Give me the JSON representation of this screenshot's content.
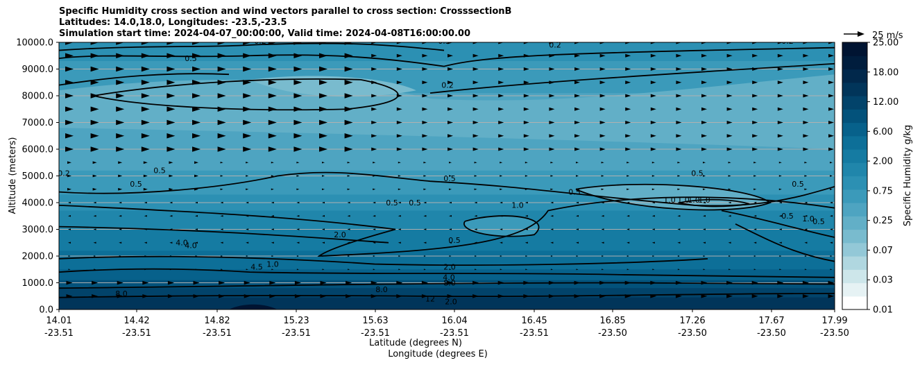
{
  "title_lines": [
    "Specific Humidity cross section and wind vectors parallel to cross section: CrosssectionB",
    "Latitudes: 14.0,18.0, Longitudes: -23.5,-23.5",
    "Simulation start time: 2024-04-07_00:00:00, Valid time: 2024-04-08T16:00:00.00"
  ],
  "chart_data": {
    "type": "heatmap",
    "subtype": "filled contour cross section with contour lines and wind vectors",
    "ylabel": "Altitude (meters)",
    "xlabel_lines": [
      "Latitude (degrees N)",
      "Longitude (degrees E)"
    ],
    "ylim": [
      0,
      10000
    ],
    "y_ticks": [
      "0.0",
      "1000.0",
      "2000.0",
      "3000.0",
      "4000.0",
      "5000.0",
      "6000.0",
      "7000.0",
      "8000.0",
      "9000.0",
      "10000.0"
    ],
    "x_ticks": [
      {
        "lat": "14.01",
        "lon": "-23.51"
      },
      {
        "lat": "14.42",
        "lon": "-23.51"
      },
      {
        "lat": "14.82",
        "lon": "-23.51"
      },
      {
        "lat": "15.23",
        "lon": "-23.51"
      },
      {
        "lat": "15.63",
        "lon": "-23.51"
      },
      {
        "lat": "16.04",
        "lon": "-23.51"
      },
      {
        "lat": "16.45",
        "lon": "-23.51"
      },
      {
        "lat": "16.85",
        "lon": "-23.50"
      },
      {
        "lat": "17.26",
        "lon": "-23.50"
      },
      {
        "lat": "17.67",
        "lon": "-23.50"
      },
      {
        "lat": "17.99",
        "lon": "-23.50"
      }
    ],
    "grid": "horizontal",
    "colorbar": {
      "label": "Specific Humidity g/kg",
      "tick_labels": [
        "0.01",
        "0.03",
        "0.07",
        "0.25",
        "0.75",
        "2.00",
        "6.00",
        "12.00",
        "18.00",
        "25.00"
      ],
      "colors": [
        "#ffffff",
        "#e6f2f4",
        "#cde6ea",
        "#b0d7e0",
        "#93c8d7",
        "#79bbce",
        "#62afc7",
        "#4ea4c1",
        "#3b9aba",
        "#2c90b3",
        "#2086ab",
        "#157ba2",
        "#0d6f98",
        "#07618b",
        "#03527b",
        "#02436a",
        "#01355a",
        "#01284b",
        "#001d3d",
        "#001432"
      ]
    },
    "quiver_key": {
      "label": "25 m/s"
    },
    "contour_labels": [
      "0.2",
      "0.2",
      "0.5",
      "0.5",
      "0.2",
      "0.2",
      "0.2",
      "0.2",
      "0.5",
      "0.5",
      "0.5",
      "0.5",
      "0.5",
      "0.5",
      "0.5",
      "0.5",
      "1.0",
      "1.0",
      "1.0",
      "1.0",
      "1.0",
      "0.5",
      "2.0",
      "4.0",
      "4.0",
      "4.5",
      "1.0",
      "2.0",
      "4.0",
      "8.0",
      "8.0",
      "8.0",
      "12",
      "2.0",
      "1.0",
      "0.5",
      "0.5"
    ]
  }
}
